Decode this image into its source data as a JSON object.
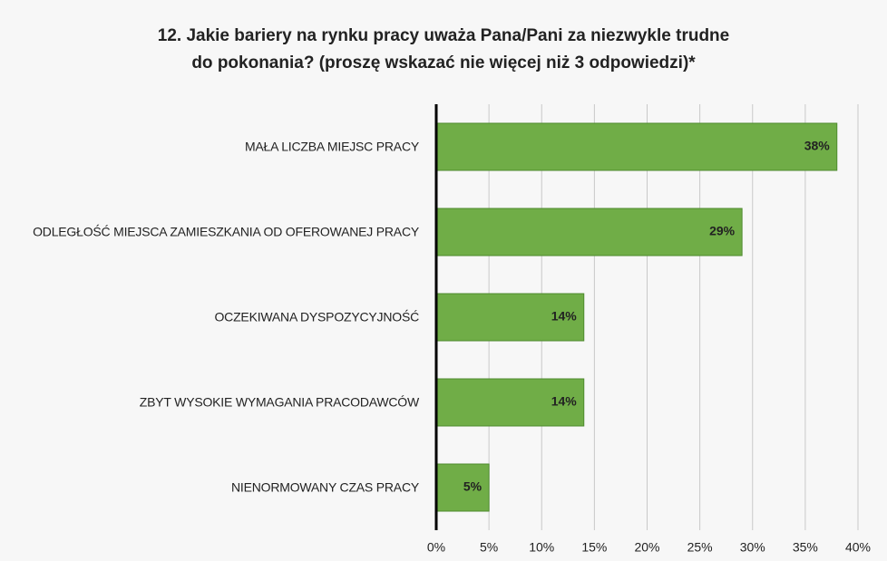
{
  "chart_data": {
    "type": "barh",
    "title": [
      "12. Jakie bariery na rynku pracy uważa Pana/Pani  za niezwykle trudne",
      "do pokonania? (proszę wskazać nie więcej niż 3 odpowiedzi)*"
    ],
    "categories": [
      "MAŁA LICZBA MIEJSC PRACY",
      "ODLEGŁOŚĆ MIEJSCA ZAMIESZKANIA OD OFEROWANEJ PRACY",
      "OCZEKIWANA DYSPOZYCYJNOŚĆ",
      "ZBYT WYSOKIE WYMAGANIA PRACODAWCÓW",
      "NIENORMOWANY CZAS PRACY"
    ],
    "values": [
      38,
      29,
      14,
      14,
      5
    ],
    "value_labels": [
      "38%",
      "29%",
      "14%",
      "14%",
      "5%"
    ],
    "color": "#70ad47",
    "xlim": [
      0,
      40
    ],
    "xticks": [
      {
        "value": 0,
        "label": "0%"
      },
      {
        "value": 5,
        "label": "5%"
      },
      {
        "value": 10,
        "label": "10%"
      },
      {
        "value": 15,
        "label": "15%"
      },
      {
        "value": 20,
        "label": "20%"
      },
      {
        "value": 25,
        "label": "25%"
      },
      {
        "value": 30,
        "label": "30%"
      },
      {
        "value": 35,
        "label": "35%"
      },
      {
        "value": 40,
        "label": "40%"
      }
    ],
    "grid": true
  }
}
